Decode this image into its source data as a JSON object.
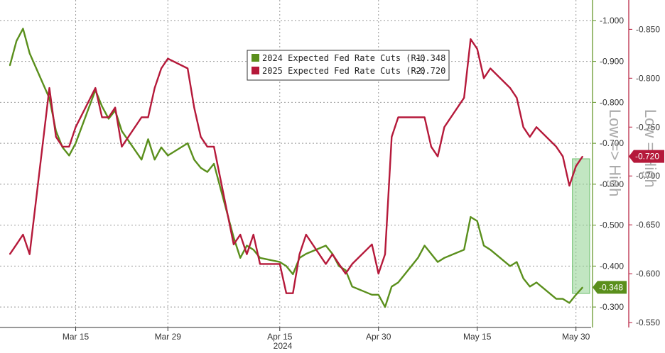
{
  "chart_data": {
    "type": "line",
    "title": "",
    "xlabel": "",
    "year_label": "2024",
    "x_dates": [
      "2024-03-05",
      "2024-03-06",
      "2024-03-07",
      "2024-03-08",
      "2024-03-11",
      "2024-03-12",
      "2024-03-13",
      "2024-03-14",
      "2024-03-15",
      "2024-03-18",
      "2024-03-19",
      "2024-03-20",
      "2024-03-21",
      "2024-03-22",
      "2024-03-25",
      "2024-03-26",
      "2024-03-27",
      "2024-03-28",
      "2024-03-29",
      "2024-04-01",
      "2024-04-02",
      "2024-04-03",
      "2024-04-04",
      "2024-04-05",
      "2024-04-08",
      "2024-04-09",
      "2024-04-10",
      "2024-04-11",
      "2024-04-12",
      "2024-04-15",
      "2024-04-16",
      "2024-04-17",
      "2024-04-18",
      "2024-04-19",
      "2024-04-22",
      "2024-04-23",
      "2024-04-24",
      "2024-04-25",
      "2024-04-26",
      "2024-04-29",
      "2024-04-30",
      "2024-05-01",
      "2024-05-02",
      "2024-05-03",
      "2024-05-06",
      "2024-05-07",
      "2024-05-08",
      "2024-05-09",
      "2024-05-10",
      "2024-05-13",
      "2024-05-14",
      "2024-05-15",
      "2024-05-16",
      "2024-05-17",
      "2024-05-20",
      "2024-05-21",
      "2024-05-22",
      "2024-05-23",
      "2024-05-24",
      "2024-05-27",
      "2024-05-28",
      "2024-05-29",
      "2024-05-30",
      "2024-05-31"
    ],
    "x_ticks": [
      {
        "date": "2024-03-15",
        "label": "Mar 15"
      },
      {
        "date": "2024-03-29",
        "label": "Mar 29"
      },
      {
        "date": "2024-04-15",
        "label": "Apr 15"
      },
      {
        "date": "2024-04-30",
        "label": "Apr 30"
      },
      {
        "date": "2024-05-15",
        "label": "May 15"
      },
      {
        "date": "2024-05-30",
        "label": "May 30"
      }
    ],
    "series": [
      {
        "name": "2024 Expected Fed Rate Cuts (R1)",
        "legend_value": "-0.348",
        "axis": "R1",
        "color": "#5a8f1c",
        "last_label": "-0.348",
        "values": [
          -0.89,
          -0.95,
          -0.98,
          -0.92,
          -0.81,
          -0.73,
          -0.69,
          -0.67,
          -0.7,
          -0.83,
          -0.79,
          -0.76,
          -0.78,
          -0.73,
          -0.66,
          -0.71,
          -0.66,
          -0.69,
          -0.67,
          -0.7,
          -0.66,
          -0.64,
          -0.63,
          -0.65,
          -0.47,
          -0.42,
          -0.45,
          -0.44,
          -0.42,
          -0.41,
          -0.4,
          -0.38,
          -0.42,
          -0.43,
          -0.45,
          -0.43,
          -0.4,
          -0.39,
          -0.35,
          -0.33,
          -0.33,
          -0.3,
          -0.35,
          -0.36,
          -0.42,
          -0.45,
          -0.43,
          -0.41,
          -0.42,
          -0.44,
          -0.52,
          -0.51,
          -0.45,
          -0.44,
          -0.4,
          -0.41,
          -0.37,
          -0.35,
          -0.36,
          -0.32,
          -0.32,
          -0.31,
          -0.33,
          -0.348
        ]
      },
      {
        "name": "2025 Expected Fed Rate Cuts (R2)",
        "legend_value": "-0.720",
        "axis": "R2",
        "color": "#b5193a",
        "last_label": "-0.720",
        "values": [
          -0.62,
          -0.63,
          -0.64,
          -0.62,
          -0.79,
          -0.74,
          -0.73,
          -0.73,
          -0.75,
          -0.79,
          -0.76,
          -0.76,
          -0.77,
          -0.73,
          -0.76,
          -0.76,
          -0.79,
          -0.81,
          -0.82,
          -0.81,
          -0.77,
          -0.74,
          -0.73,
          -0.73,
          -0.63,
          -0.64,
          -0.62,
          -0.64,
          -0.61,
          -0.61,
          -0.58,
          -0.58,
          -0.62,
          -0.64,
          -0.61,
          -0.62,
          -0.61,
          -0.6,
          -0.61,
          -0.63,
          -0.6,
          -0.62,
          -0.74,
          -0.76,
          -0.76,
          -0.76,
          -0.73,
          -0.72,
          -0.75,
          -0.78,
          -0.84,
          -0.83,
          -0.8,
          -0.81,
          -0.79,
          -0.78,
          -0.75,
          -0.74,
          -0.75,
          -0.73,
          -0.72,
          -0.69,
          -0.71,
          -0.72
        ]
      }
    ],
    "axes": {
      "R1": {
        "color": "#5a8f1c",
        "ylim": [
          -0.25,
          -1.05
        ],
        "ticks": [
          "-1.000",
          "-0.900",
          "-0.800",
          "-0.700",
          "-0.600",
          "-0.500",
          "-0.400",
          "-0.300"
        ],
        "label": "Low => High"
      },
      "R2": {
        "color": "#b5193a",
        "ylim": [
          -0.545,
          -0.88
        ],
        "ticks": [
          "-0.850",
          "-0.800",
          "-0.750",
          "-0.700",
          "-0.650",
          "-0.600",
          "-0.550"
        ],
        "label": "Low = High"
      }
    },
    "highlight": {
      "from": "2024-05-30",
      "to": "2024-05-31",
      "color": "#8fd18f"
    },
    "grid": true,
    "legend_position": "top-center"
  }
}
